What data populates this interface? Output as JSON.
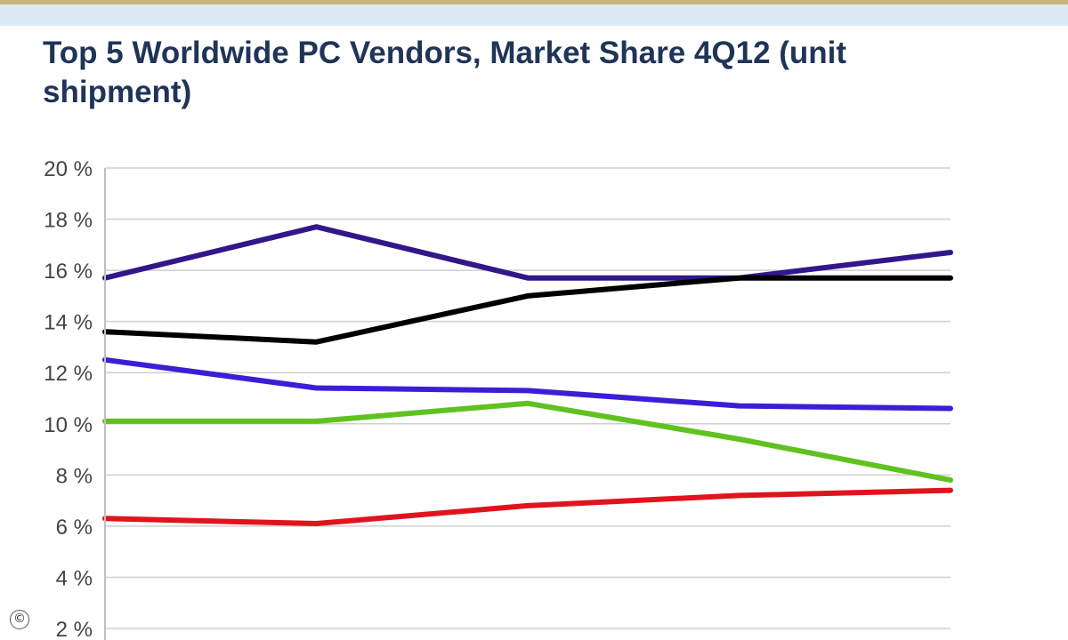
{
  "header": {
    "title": "Top 5 Worldwide PC Vendors, Market Share 4Q12 (unit shipment)"
  },
  "chart_data": {
    "type": "line",
    "title": "Top 5 Worldwide PC Vendors, Market Share 4Q12 (unit shipment)",
    "xlabel": "",
    "ylabel": "",
    "ylim": [
      2,
      20
    ],
    "y_ticks": [
      "2 %",
      "4 %",
      "6 %",
      "8 %",
      "10 %",
      "12 %",
      "14 %",
      "16 %",
      "18 %",
      "20 %"
    ],
    "y_tick_values": [
      2,
      4,
      6,
      8,
      10,
      12,
      14,
      16,
      18,
      20
    ],
    "grid": true,
    "x": [
      1,
      2,
      3,
      4,
      5
    ],
    "series": [
      {
        "color": "#33168a",
        "values": [
          15.7,
          17.7,
          15.7,
          15.7,
          16.7
        ]
      },
      {
        "color": "#000000",
        "values": [
          13.6,
          13.2,
          15.0,
          15.7,
          15.7
        ]
      },
      {
        "color": "#3a1fd6",
        "values": [
          12.5,
          11.4,
          11.3,
          10.7,
          10.6
        ]
      },
      {
        "color": "#5fc21e",
        "values": [
          10.1,
          10.1,
          10.8,
          9.4,
          7.8
        ]
      },
      {
        "color": "#e0141e",
        "values": [
          6.3,
          6.1,
          6.8,
          7.2,
          7.4
        ]
      }
    ]
  },
  "footer": {
    "icon": "copyright-icon"
  }
}
